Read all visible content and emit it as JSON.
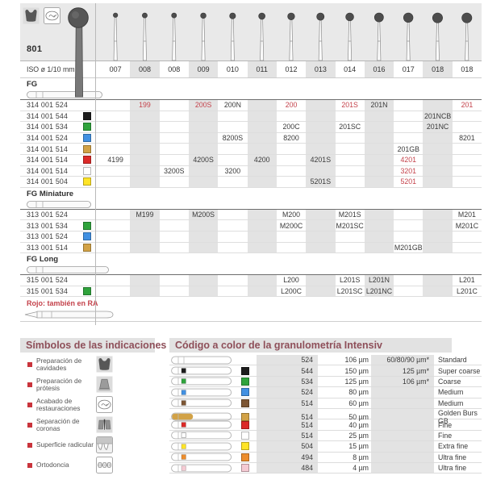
{
  "colors": {
    "black": "#1c1c1c",
    "green": "#2fa33c",
    "blue": "#4190e2",
    "gold": "#d2a246",
    "brown": "#7d5634",
    "red": "#dc2a28",
    "white": "#ffffff",
    "yellow": "#ffe427",
    "orange": "#ec8d2d",
    "pink": "#f5cad3",
    "accent_red": "#c4424b",
    "heading": "#8e4f59",
    "stripe": "#e3e3e3",
    "top_band": "#e9e9e9"
  },
  "top": {
    "figure": "801",
    "indication_icons": [
      "cavity-preparation",
      "restoration-finishing"
    ]
  },
  "iso": {
    "label": "ISO ø 1/10 mm",
    "sizes": [
      "007",
      "008",
      "008",
      "009",
      "010",
      "011",
      "012",
      "013",
      "014",
      "016",
      "017",
      "018",
      "018"
    ]
  },
  "catalog": {
    "note": "Rojo: también en RA",
    "sections": [
      {
        "name": "FG",
        "shank": "fg",
        "rows": [
          {
            "code": "314 001 524",
            "square": null,
            "cells": [
              [
                1,
                "199",
                1
              ],
              [
                3,
                "200S",
                1
              ],
              [
                4,
                "200N",
                0
              ],
              [
                6,
                "200",
                1
              ],
              [
                8,
                "201S",
                1
              ],
              [
                9,
                "201N",
                0
              ],
              [
                12,
                "201",
                1
              ]
            ]
          },
          {
            "code": "314 001 544",
            "square": "black",
            "cells": [
              [
                11,
                "201NCB",
                0
              ]
            ]
          },
          {
            "code": "314 001 534",
            "square": "green",
            "cells": [
              [
                6,
                "200C",
                0
              ],
              [
                8,
                "201SC",
                0
              ],
              [
                11,
                "201NC",
                0
              ]
            ]
          },
          {
            "code": "314 001 524",
            "square": "blue",
            "cells": [
              [
                4,
                "8200S",
                0
              ],
              [
                6,
                "8200",
                0
              ],
              [
                12,
                "8201",
                0
              ]
            ]
          },
          {
            "code": "314 001 514",
            "square": "gold",
            "cells": [
              [
                10,
                "201GB",
                0
              ]
            ]
          },
          {
            "code": "314 001 514",
            "square": "red",
            "cells": [
              [
                0,
                "4199",
                0
              ],
              [
                3,
                "4200S",
                0
              ],
              [
                5,
                "4200",
                0
              ],
              [
                7,
                "4201S",
                0
              ],
              [
                10,
                "4201",
                1
              ]
            ]
          },
          {
            "code": "314 001 514",
            "square": "white",
            "cells": [
              [
                2,
                "3200S",
                0
              ],
              [
                4,
                "3200",
                0
              ],
              [
                10,
                "3201",
                1
              ]
            ]
          },
          {
            "code": "314 001 504",
            "square": "yellow",
            "cells": [
              [
                7,
                "5201S",
                0
              ],
              [
                10,
                "5201",
                1
              ]
            ]
          }
        ]
      },
      {
        "name": "FG Miniature",
        "shank": "mini",
        "rows": [
          {
            "code": "313 001 524",
            "square": null,
            "cells": [
              [
                1,
                "M199",
                0
              ],
              [
                3,
                "M200S",
                0
              ],
              [
                6,
                "M200",
                0
              ],
              [
                8,
                "M201S",
                0
              ],
              [
                12,
                "M201",
                0
              ]
            ]
          },
          {
            "code": "313 001 534",
            "square": "green",
            "cells": [
              [
                6,
                "M200C",
                0
              ],
              [
                8,
                "M201SC",
                0
              ],
              [
                12,
                "M201C",
                0
              ]
            ]
          },
          {
            "code": "313 001 524",
            "square": "blue",
            "cells": []
          },
          {
            "code": "313 001 514",
            "square": "gold",
            "cells": [
              [
                10,
                "M201GB",
                0
              ]
            ]
          }
        ]
      },
      {
        "name": "FG Long",
        "shank": "long",
        "rows": [
          {
            "code": "315 001 524",
            "square": null,
            "cells": [
              [
                6,
                "L200",
                0
              ],
              [
                8,
                "L201S",
                0
              ],
              [
                9,
                "L201N",
                0
              ],
              [
                12,
                "L201",
                0
              ]
            ]
          },
          {
            "code": "315 001 534",
            "square": "green",
            "cells": [
              [
                6,
                "L200C",
                0
              ],
              [
                8,
                "L201SC",
                0
              ],
              [
                9,
                "L201NC",
                0
              ],
              [
                12,
                "L201C",
                0
              ]
            ]
          }
        ]
      }
    ]
  },
  "symbols": {
    "title": "Símbolos de las indicaciones",
    "items": [
      {
        "label": "Preparación de cavidades",
        "icon": "cavity-preparation"
      },
      {
        "label": "Preparación de prótesis",
        "icon": "prosthesis-preparation"
      },
      {
        "label": "Acabado de restauraciones",
        "icon": "restoration-finishing"
      },
      {
        "label": "Separación de coronas",
        "icon": "crown-separation"
      },
      {
        "label": "Superficie radicular",
        "icon": "root-surface"
      },
      {
        "label": "Ortodoncia",
        "icon": "orthodontics"
      }
    ]
  },
  "grit": {
    "title": "Código a color de la granulometría Intensiv",
    "rows": [
      {
        "square": null,
        "code": "524",
        "size": "106 µm",
        "alt": "60/80/90 µm*",
        "name": "Standard"
      },
      {
        "square": "black",
        "code": "544",
        "size": "150 µm",
        "alt": "125 µm*",
        "name": "Super coarse"
      },
      {
        "square": "green",
        "code": "534",
        "size": "125 µm",
        "alt": "106 µm*",
        "name": "Coarse"
      },
      {
        "square": "blue",
        "code": "524",
        "size": "80 µm",
        "alt": "",
        "name": "Medium"
      },
      {
        "square": "brown",
        "code": "514",
        "size": "60 µm",
        "alt": "",
        "name": "Medium"
      },
      {
        "square": "gold",
        "code": "514",
        "size": "50 µm",
        "alt": "",
        "name": "Golden Burs GB"
      },
      {
        "square": "red",
        "code": "514",
        "size": "40 µm",
        "alt": "",
        "name": "Fine"
      },
      {
        "square": "white",
        "code": "514",
        "size": "25 µm",
        "alt": "",
        "name": "Fine"
      },
      {
        "square": "yellow",
        "code": "504",
        "size": "15 µm",
        "alt": "",
        "name": "Extra fine"
      },
      {
        "square": "orange",
        "code": "494",
        "size": "8 µm",
        "alt": "",
        "name": "Ultra fine"
      },
      {
        "square": "pink",
        "code": "484",
        "size": "4 µm",
        "alt": "",
        "name": "Ultra fine"
      }
    ]
  }
}
